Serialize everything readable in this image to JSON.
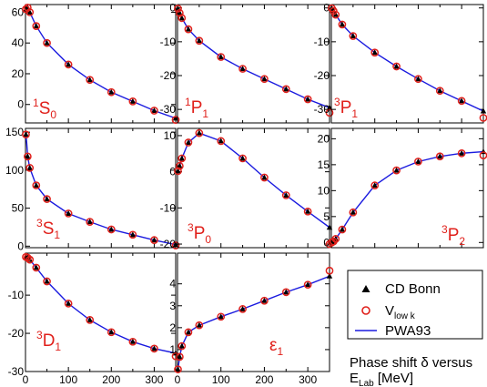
{
  "figure": {
    "caption_line1": "Phase shift δ versus",
    "caption_line2_main": "E",
    "caption_line2_sub": "Lab",
    "caption_line2_unit": " [MeV]"
  },
  "legend": {
    "entries": [
      {
        "kind": "triangle",
        "main": "CD Bonn",
        "sub": ""
      },
      {
        "kind": "circle",
        "main": "V",
        "sub": "low k"
      },
      {
        "kind": "line",
        "main": "PWA93",
        "sub": ""
      }
    ]
  },
  "colors": {
    "line": "#1a1adf",
    "circle": "#e0201b",
    "triangle": "#000000",
    "label": "#e0201b"
  },
  "chart_data": [
    {
      "type": "line",
      "label": {
        "sup": "1",
        "main": "S",
        "sub": "0"
      },
      "xlim": [
        0,
        350
      ],
      "ylim": [
        -12,
        65
      ],
      "xticks": [],
      "yticks": [
        0,
        20,
        40,
        60
      ],
      "curve_x": [
        1,
        3,
        5,
        10,
        25,
        50,
        100,
        150,
        200,
        250,
        300,
        350
      ],
      "curve_y": [
        62,
        64,
        63,
        60,
        51,
        40,
        26,
        16,
        8,
        2,
        -4,
        -9
      ],
      "circles_x": [
        1,
        5,
        10,
        25,
        50,
        100,
        150,
        200,
        250,
        300,
        350
      ],
      "circles_y": [
        62,
        63,
        60,
        51,
        40,
        26,
        16,
        8,
        2,
        -4,
        -10
      ],
      "triangles_x": [
        1,
        5,
        10,
        25,
        50,
        100,
        150,
        200,
        250,
        300,
        350
      ],
      "triangles_y": [
        62,
        63,
        60,
        51,
        40,
        26,
        16,
        8,
        2,
        -4,
        -9
      ]
    },
    {
      "type": "line",
      "label": {
        "sup": "1",
        "main": "P",
        "sub": "1"
      },
      "xlim": [
        0,
        350
      ],
      "ylim": [
        -34,
        1
      ],
      "xticks": [],
      "yticks": [
        -30,
        -20,
        -10,
        0
      ],
      "curve_x": [
        0,
        1,
        5,
        10,
        25,
        50,
        100,
        150,
        200,
        250,
        300,
        350
      ],
      "curve_y": [
        0,
        -0.2,
        -1.5,
        -3,
        -6.3,
        -9.7,
        -14.5,
        -18,
        -21,
        -24,
        -27,
        -29.5
      ],
      "circles_x": [
        1,
        5,
        10,
        25,
        50,
        100,
        150,
        200,
        250,
        300,
        350
      ],
      "circles_y": [
        -0.2,
        -1.5,
        -3,
        -6.3,
        -9.7,
        -14.5,
        -18,
        -21,
        -24,
        -27,
        -31
      ],
      "triangles_x": [
        1,
        5,
        10,
        25,
        50,
        100,
        150,
        200,
        250,
        300,
        350
      ],
      "triangles_y": [
        -0.2,
        -1.5,
        -3,
        -6.3,
        -9.7,
        -14.5,
        -18,
        -21,
        -24,
        -27,
        -29.5
      ]
    },
    {
      "type": "line",
      "label": {
        "sup": "3",
        "main": "P",
        "sub": "1"
      },
      "xlim": [
        0,
        350
      ],
      "ylim": [
        -34,
        1
      ],
      "xticks": [],
      "yticks": [
        -30,
        -20,
        -10,
        0
      ],
      "curve_x": [
        0,
        1,
        5,
        10,
        25,
        50,
        100,
        150,
        200,
        250,
        300,
        350
      ],
      "curve_y": [
        0,
        -0.1,
        -0.9,
        -2,
        -4.9,
        -8.3,
        -13.2,
        -17.3,
        -21,
        -24.5,
        -27.5,
        -30.5
      ],
      "circles_x": [
        1,
        5,
        10,
        25,
        50,
        100,
        150,
        200,
        250,
        300,
        350
      ],
      "circles_y": [
        -0.1,
        -0.9,
        -2,
        -4.9,
        -8.3,
        -13.2,
        -17.3,
        -21,
        -24.5,
        -27.5,
        -32.5
      ],
      "triangles_x": [
        1,
        5,
        10,
        25,
        50,
        100,
        150,
        200,
        250,
        300,
        350
      ],
      "triangles_y": [
        -0.1,
        -0.9,
        -2,
        -4.9,
        -8.3,
        -13.2,
        -17.3,
        -21,
        -24.5,
        -27.5,
        -30.5
      ]
    },
    {
      "type": "line",
      "label": {
        "sup": "3",
        "main": "S",
        "sub": "1"
      },
      "xlim": [
        0,
        350
      ],
      "ylim": [
        -2,
        155
      ],
      "xticks": [],
      "yticks": [
        0,
        50,
        100,
        150
      ],
      "curve_x": [
        1,
        3,
        5,
        10,
        25,
        50,
        100,
        150,
        200,
        250,
        300,
        350
      ],
      "curve_y": [
        147,
        135,
        118,
        103,
        80,
        62,
        43,
        32,
        22,
        15,
        8,
        2
      ],
      "circles_x": [
        1,
        5,
        10,
        25,
        50,
        100,
        150,
        200,
        250,
        300,
        350
      ],
      "circles_y": [
        147,
        118,
        103,
        80,
        62,
        43,
        32,
        22,
        15,
        8,
        1
      ],
      "triangles_x": [
        1,
        5,
        10,
        25,
        50,
        100,
        150,
        200,
        250,
        300,
        350
      ],
      "triangles_y": [
        147,
        118,
        103,
        80,
        62,
        43,
        32,
        22,
        15,
        8,
        2
      ]
    },
    {
      "type": "line",
      "label": {
        "sup": "3",
        "main": "P",
        "sub": "0"
      },
      "xlim": [
        0,
        350
      ],
      "ylim": [
        -21,
        12
      ],
      "xticks": [],
      "yticks": [
        -20,
        -10,
        0,
        10
      ],
      "curve_x": [
        0,
        1,
        5,
        10,
        25,
        50,
        100,
        150,
        200,
        250,
        300,
        350
      ],
      "curve_y": [
        0,
        0.2,
        1.6,
        3.7,
        8.1,
        10.7,
        8.5,
        3.7,
        -1.6,
        -6.5,
        -11,
        -15.4
      ],
      "circles_x": [
        1,
        5,
        10,
        25,
        50,
        100,
        150,
        200,
        250,
        300,
        350
      ],
      "circles_y": [
        0.2,
        1.6,
        3.7,
        8.1,
        10.7,
        8.5,
        3.7,
        -1.6,
        -6.5,
        -11,
        -20
      ],
      "triangles_x": [
        1,
        5,
        10,
        25,
        50,
        100,
        150,
        200,
        250,
        300,
        350
      ],
      "triangles_y": [
        0.2,
        1.6,
        3.7,
        8.1,
        10.7,
        8.5,
        3.7,
        -1.6,
        -6.5,
        -11,
        -15.4
      ]
    },
    {
      "type": "line",
      "label": {
        "sup": "3",
        "main": "P",
        "sub": "2"
      },
      "xlim": [
        0,
        350
      ],
      "ylim": [
        -1,
        22
      ],
      "xticks": [],
      "yticks": [
        0,
        5,
        10,
        15,
        20
      ],
      "curve_x": [
        0,
        1,
        5,
        10,
        25,
        50,
        100,
        150,
        200,
        250,
        300,
        350
      ],
      "curve_y": [
        0,
        0.01,
        0.2,
        0.7,
        2.5,
        5.8,
        11,
        13.9,
        15.6,
        16.6,
        17.2,
        17.5
      ],
      "circles_x": [
        1,
        5,
        10,
        25,
        50,
        100,
        150,
        200,
        250,
        300,
        350
      ],
      "circles_y": [
        0.01,
        0.2,
        0.7,
        2.5,
        5.8,
        11,
        13.9,
        15.6,
        16.6,
        17.2,
        16.8
      ],
      "triangles_x": [
        1,
        5,
        10,
        25,
        50,
        100,
        150,
        200,
        250,
        300,
        350
      ],
      "triangles_y": [
        0.01,
        0.2,
        0.7,
        2.5,
        5.8,
        11,
        13.9,
        15.6,
        16.6,
        17.2,
        17.5
      ]
    },
    {
      "type": "line",
      "label": {
        "sup": "3",
        "main": "D",
        "sub": "1"
      },
      "xlim": [
        0,
        350
      ],
      "ylim": [
        -30,
        1
      ],
      "xticks": [
        0,
        100,
        200,
        300
      ],
      "yticks": [
        -30,
        -20,
        -10
      ],
      "curve_x": [
        0,
        1,
        5,
        10,
        25,
        50,
        100,
        150,
        200,
        250,
        300,
        350
      ],
      "curve_y": [
        0,
        -0.01,
        -0.2,
        -0.7,
        -2.8,
        -6.4,
        -12.2,
        -16.5,
        -19.7,
        -22.2,
        -24,
        -25.2
      ],
      "circles_x": [
        1,
        5,
        10,
        25,
        50,
        100,
        150,
        200,
        250,
        300,
        350
      ],
      "circles_y": [
        -0.01,
        -0.2,
        -0.7,
        -2.8,
        -6.4,
        -12.2,
        -16.5,
        -19.7,
        -22.2,
        -24,
        -26
      ],
      "triangles_x": [
        1,
        5,
        10,
        25,
        50,
        100,
        150,
        200,
        250,
        300,
        350
      ],
      "triangles_y": [
        -0.01,
        -0.2,
        -0.7,
        -2.8,
        -6.4,
        -12.2,
        -16.5,
        -19.7,
        -22.2,
        -24,
        -25.2
      ]
    },
    {
      "type": "line",
      "label": {
        "main": "ε",
        "sub": "1",
        "sup": ""
      },
      "xlim": [
        0,
        350
      ],
      "ylim": [
        0,
        5.4
      ],
      "xticks": [
        0,
        100,
        200,
        300
      ],
      "yticks": [
        1,
        2,
        3,
        4
      ],
      "curve_x": [
        0,
        1,
        5,
        10,
        25,
        50,
        100,
        150,
        200,
        250,
        300,
        350
      ],
      "curve_y": [
        0,
        0.1,
        0.67,
        1.16,
        1.79,
        2.11,
        2.5,
        2.85,
        3.23,
        3.62,
        3.96,
        4.35
      ],
      "circles_x": [
        1,
        5,
        10,
        25,
        50,
        100,
        150,
        200,
        250,
        300,
        350
      ],
      "circles_y": [
        0.1,
        0.67,
        1.16,
        1.79,
        2.11,
        2.5,
        2.85,
        3.23,
        3.62,
        3.96,
        4.6
      ],
      "triangles_x": [
        1,
        5,
        10,
        25,
        50,
        100,
        150,
        200,
        250,
        300,
        350
      ],
      "triangles_y": [
        0.1,
        0.67,
        1.16,
        1.79,
        2.11,
        2.5,
        2.85,
        3.23,
        3.62,
        3.96,
        4.35
      ]
    }
  ]
}
